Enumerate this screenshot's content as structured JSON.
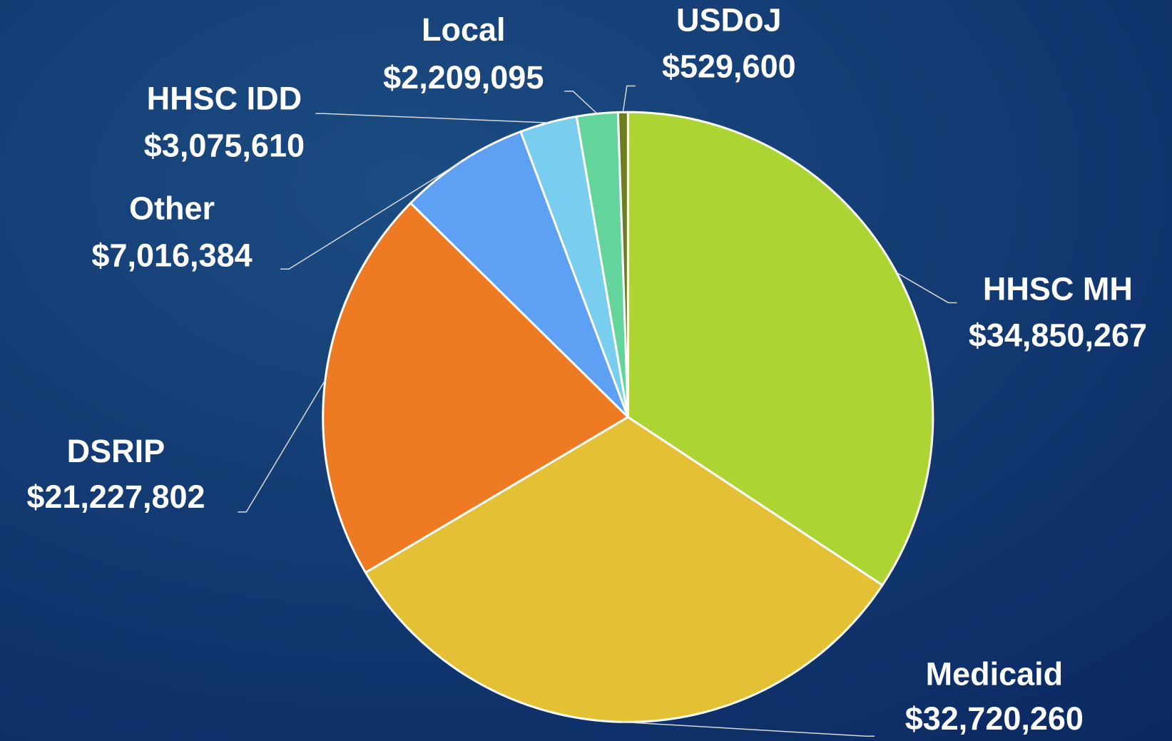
{
  "chart_data": {
    "type": "pie",
    "categories": [
      "HHSC MH",
      "Medicaid",
      "DSRIP",
      "Other",
      "HHSC IDD",
      "Local",
      "USDoJ"
    ],
    "values": [
      34850267,
      32720260,
      21227802,
      7016384,
      3075610,
      2209095,
      529600
    ],
    "value_labels": [
      "$34,850,267",
      "$32,720,260",
      "$21,227,802",
      "$7,016,384",
      "$3,075,610",
      "$2,209,095",
      "$529,600"
    ],
    "colors": [
      "#acd433",
      "#e3c034",
      "#ee7b24",
      "#5ea1f4",
      "#79cdee",
      "#63d49c",
      "#6b7d1f"
    ]
  }
}
